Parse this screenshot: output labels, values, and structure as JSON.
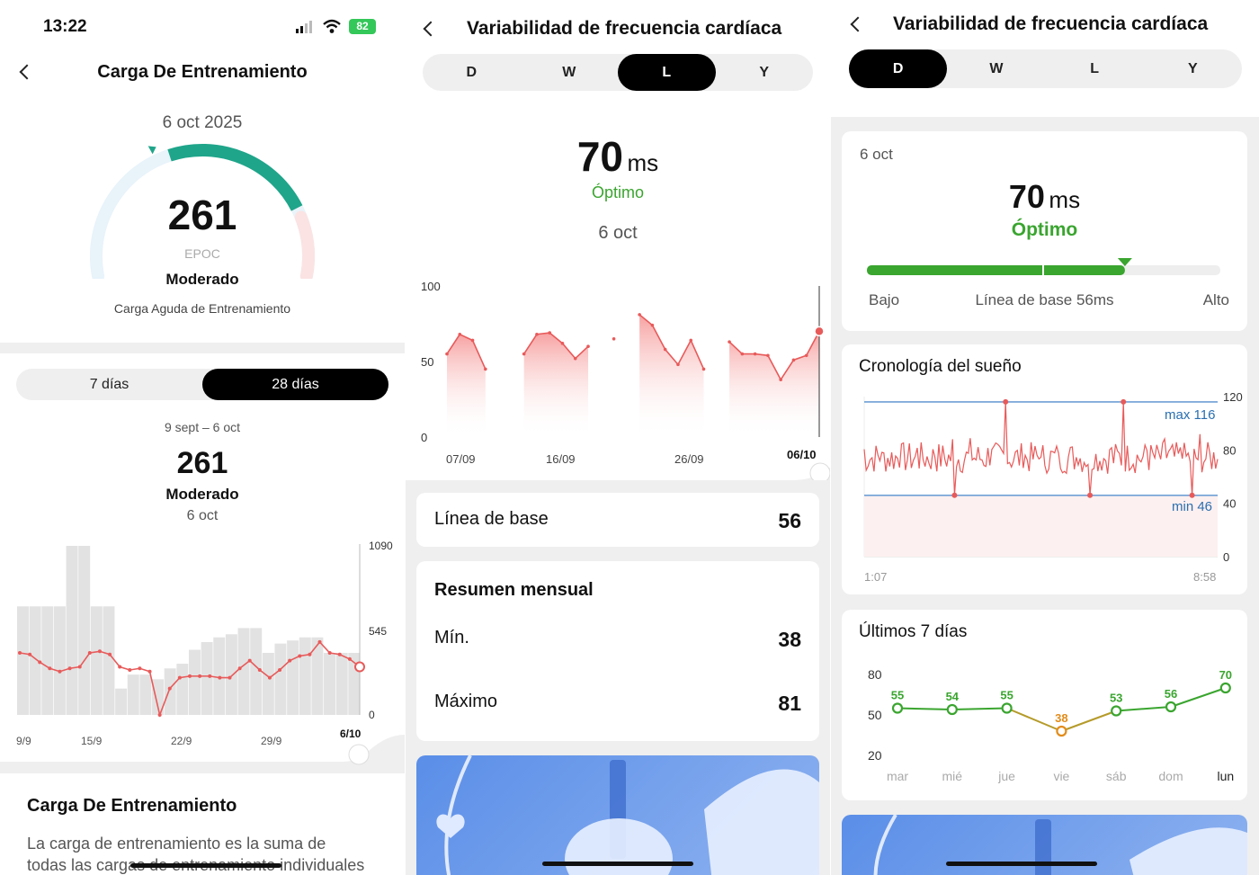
{
  "colors": {
    "accent_green": "#1fa58a",
    "optimal_green": "#3aa52f",
    "hrv_red": "#e85a5a",
    "primary_dark": "#000000",
    "blue_line": "#6f9fd6",
    "orange": "#e28c1a"
  },
  "status_bar": {
    "time": "13:22",
    "battery": "82"
  },
  "panel1": {
    "title": "Carga De Entrenamiento",
    "date": "6 oct 2025",
    "gauge": {
      "value": "261",
      "unit": "EPOC",
      "level": "Moderado",
      "caption": "Carga Aguda de Entrenamiento",
      "fill_fraction": 0.6
    },
    "tabs": [
      "7 días",
      "28 días"
    ],
    "range": "9 sept – 6 oct",
    "summary": {
      "value": "261",
      "level": "Moderado",
      "date": "6 oct"
    },
    "info_title": "Carga De Entrenamiento",
    "info_text_1": "La carga de entrenamiento es la suma de",
    "info_text_2": "todas las cargas de entrenamiento individuales"
  },
  "panel2": {
    "title": "Variabilidad de frecuencia cardíaca",
    "tabs": [
      "D",
      "W",
      "L",
      "Y"
    ],
    "value": "70",
    "unit": "ms",
    "status": "Óptimo",
    "date": "6 oct",
    "baseline_label": "Línea de base",
    "baseline_value": "56",
    "monthly_title": "Resumen mensual",
    "min_label": "Mín.",
    "min_value": "38",
    "max_label": "Máximo",
    "max_value": "81"
  },
  "panel3": {
    "title": "Variabilidad de frecuencia cardíaca",
    "tabs": [
      "D",
      "W",
      "L",
      "Y"
    ],
    "date": "6 oct",
    "value": "70",
    "unit": "ms",
    "status": "Óptimo",
    "bar": {
      "low": "Bajo",
      "baseline": "Línea de base 56ms",
      "high": "Alto",
      "marker_fraction": 0.73
    },
    "sleep_title": "Cronología del sueño",
    "last7_title": "Últimos 7 días"
  },
  "chart_data": [
    {
      "type": "bar",
      "title": "",
      "x_ticks": [
        "9/9",
        "15/9",
        "22/9",
        "29/9",
        "6/10"
      ],
      "y_ticks": [
        "1090",
        "545",
        "0"
      ],
      "ylim": [
        0,
        1090
      ],
      "series": [
        {
          "values": [
            700,
            700,
            700,
            700,
            700,
            700,
            700,
            700,
            1090,
            1090,
            1090,
            1090,
            700,
            700,
            700,
            320,
            170,
            230,
            260,
            260,
            260,
            260,
            230,
            230,
            300,
            300,
            330,
            330,
            420,
            470,
            470,
            480,
            500,
            500,
            520,
            540,
            560,
            560,
            560,
            560,
            400,
            400,
            460,
            460,
            480,
            500,
            500,
            520,
            500,
            500,
            400,
            400,
            400,
            400,
            400,
            420
          ]
        },
        {
          "values": [
            400,
            390,
            340,
            300,
            280,
            300,
            310,
            400,
            410,
            390,
            310,
            290,
            300,
            280,
            0,
            170,
            240,
            250,
            250,
            250,
            240,
            240,
            300,
            350,
            290,
            240,
            290,
            350,
            380,
            390,
            470,
            400,
            390,
            360,
            310
          ]
        }
      ]
    },
    {
      "type": "area",
      "title": "",
      "x_ticks": [
        "07/09",
        "16/09",
        "26/09",
        "06/10"
      ],
      "y_ticks": [
        "100",
        "50",
        "0"
      ],
      "ylim": [
        0,
        100
      ],
      "series": [
        {
          "values": [
            55,
            68,
            64,
            45,
            null,
            null,
            55,
            68,
            69,
            62,
            52,
            60,
            null,
            65,
            null,
            81,
            74,
            58,
            48,
            64,
            45,
            null,
            63,
            55,
            55,
            54,
            38,
            51,
            54,
            70
          ]
        }
      ]
    },
    {
      "type": "line",
      "title": "Cronología del sueño",
      "x_ticks": [
        "1:07",
        "8:58"
      ],
      "y_ticks": [
        "120",
        "80",
        "40",
        "0"
      ],
      "ylim": [
        0,
        120
      ],
      "annotations": [
        "max 116",
        "min 46"
      ]
    },
    {
      "type": "line",
      "title": "Últimos 7 días",
      "categories": [
        "mar",
        "mié",
        "jue",
        "vie",
        "sáb",
        "dom",
        "lun"
      ],
      "values": [
        55,
        54,
        55,
        38,
        53,
        56,
        70
      ],
      "y_ticks": [
        "80",
        "50",
        "20"
      ],
      "ylim": [
        20,
        80
      ]
    }
  ]
}
